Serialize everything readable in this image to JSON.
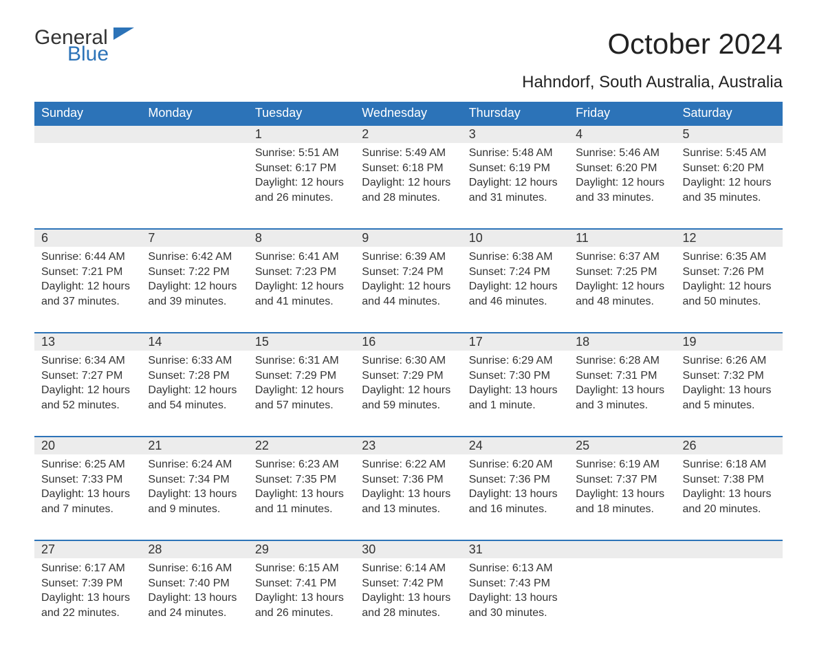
{
  "logo": {
    "general": "General",
    "blue": "Blue",
    "flag_color": "#2c73b8"
  },
  "title": "October 2024",
  "location": "Hahndorf, South Australia, Australia",
  "colors": {
    "header_bg": "#2c73b8",
    "header_text": "#ffffff",
    "daynum_bg": "#ececec",
    "daynum_border": "#2c73b8",
    "body_text": "#333333",
    "page_bg": "#ffffff"
  },
  "typography": {
    "title_fontsize": 42,
    "location_fontsize": 24,
    "header_fontsize": 18,
    "daynum_fontsize": 18,
    "cell_fontsize": 16
  },
  "calendar": {
    "type": "table",
    "columns": [
      "Sunday",
      "Monday",
      "Tuesday",
      "Wednesday",
      "Thursday",
      "Friday",
      "Saturday"
    ],
    "weeks": [
      [
        null,
        null,
        {
          "n": "1",
          "sunrise": "5:51 AM",
          "sunset": "6:17 PM",
          "daylight": "12 hours and 26 minutes."
        },
        {
          "n": "2",
          "sunrise": "5:49 AM",
          "sunset": "6:18 PM",
          "daylight": "12 hours and 28 minutes."
        },
        {
          "n": "3",
          "sunrise": "5:48 AM",
          "sunset": "6:19 PM",
          "daylight": "12 hours and 31 minutes."
        },
        {
          "n": "4",
          "sunrise": "5:46 AM",
          "sunset": "6:20 PM",
          "daylight": "12 hours and 33 minutes."
        },
        {
          "n": "5",
          "sunrise": "5:45 AM",
          "sunset": "6:20 PM",
          "daylight": "12 hours and 35 minutes."
        }
      ],
      [
        {
          "n": "6",
          "sunrise": "6:44 AM",
          "sunset": "7:21 PM",
          "daylight": "12 hours and 37 minutes."
        },
        {
          "n": "7",
          "sunrise": "6:42 AM",
          "sunset": "7:22 PM",
          "daylight": "12 hours and 39 minutes."
        },
        {
          "n": "8",
          "sunrise": "6:41 AM",
          "sunset": "7:23 PM",
          "daylight": "12 hours and 41 minutes."
        },
        {
          "n": "9",
          "sunrise": "6:39 AM",
          "sunset": "7:24 PM",
          "daylight": "12 hours and 44 minutes."
        },
        {
          "n": "10",
          "sunrise": "6:38 AM",
          "sunset": "7:24 PM",
          "daylight": "12 hours and 46 minutes."
        },
        {
          "n": "11",
          "sunrise": "6:37 AM",
          "sunset": "7:25 PM",
          "daylight": "12 hours and 48 minutes."
        },
        {
          "n": "12",
          "sunrise": "6:35 AM",
          "sunset": "7:26 PM",
          "daylight": "12 hours and 50 minutes."
        }
      ],
      [
        {
          "n": "13",
          "sunrise": "6:34 AM",
          "sunset": "7:27 PM",
          "daylight": "12 hours and 52 minutes."
        },
        {
          "n": "14",
          "sunrise": "6:33 AM",
          "sunset": "7:28 PM",
          "daylight": "12 hours and 54 minutes."
        },
        {
          "n": "15",
          "sunrise": "6:31 AM",
          "sunset": "7:29 PM",
          "daylight": "12 hours and 57 minutes."
        },
        {
          "n": "16",
          "sunrise": "6:30 AM",
          "sunset": "7:29 PM",
          "daylight": "12 hours and 59 minutes."
        },
        {
          "n": "17",
          "sunrise": "6:29 AM",
          "sunset": "7:30 PM",
          "daylight": "13 hours and 1 minute."
        },
        {
          "n": "18",
          "sunrise": "6:28 AM",
          "sunset": "7:31 PM",
          "daylight": "13 hours and 3 minutes."
        },
        {
          "n": "19",
          "sunrise": "6:26 AM",
          "sunset": "7:32 PM",
          "daylight": "13 hours and 5 minutes."
        }
      ],
      [
        {
          "n": "20",
          "sunrise": "6:25 AM",
          "sunset": "7:33 PM",
          "daylight": "13 hours and 7 minutes."
        },
        {
          "n": "21",
          "sunrise": "6:24 AM",
          "sunset": "7:34 PM",
          "daylight": "13 hours and 9 minutes."
        },
        {
          "n": "22",
          "sunrise": "6:23 AM",
          "sunset": "7:35 PM",
          "daylight": "13 hours and 11 minutes."
        },
        {
          "n": "23",
          "sunrise": "6:22 AM",
          "sunset": "7:36 PM",
          "daylight": "13 hours and 13 minutes."
        },
        {
          "n": "24",
          "sunrise": "6:20 AM",
          "sunset": "7:36 PM",
          "daylight": "13 hours and 16 minutes."
        },
        {
          "n": "25",
          "sunrise": "6:19 AM",
          "sunset": "7:37 PM",
          "daylight": "13 hours and 18 minutes."
        },
        {
          "n": "26",
          "sunrise": "6:18 AM",
          "sunset": "7:38 PM",
          "daylight": "13 hours and 20 minutes."
        }
      ],
      [
        {
          "n": "27",
          "sunrise": "6:17 AM",
          "sunset": "7:39 PM",
          "daylight": "13 hours and 22 minutes."
        },
        {
          "n": "28",
          "sunrise": "6:16 AM",
          "sunset": "7:40 PM",
          "daylight": "13 hours and 24 minutes."
        },
        {
          "n": "29",
          "sunrise": "6:15 AM",
          "sunset": "7:41 PM",
          "daylight": "13 hours and 26 minutes."
        },
        {
          "n": "30",
          "sunrise": "6:14 AM",
          "sunset": "7:42 PM",
          "daylight": "13 hours and 28 minutes."
        },
        {
          "n": "31",
          "sunrise": "6:13 AM",
          "sunset": "7:43 PM",
          "daylight": "13 hours and 30 minutes."
        },
        null,
        null
      ]
    ],
    "labels": {
      "sunrise": "Sunrise:",
      "sunset": "Sunset:",
      "daylight": "Daylight:"
    }
  }
}
